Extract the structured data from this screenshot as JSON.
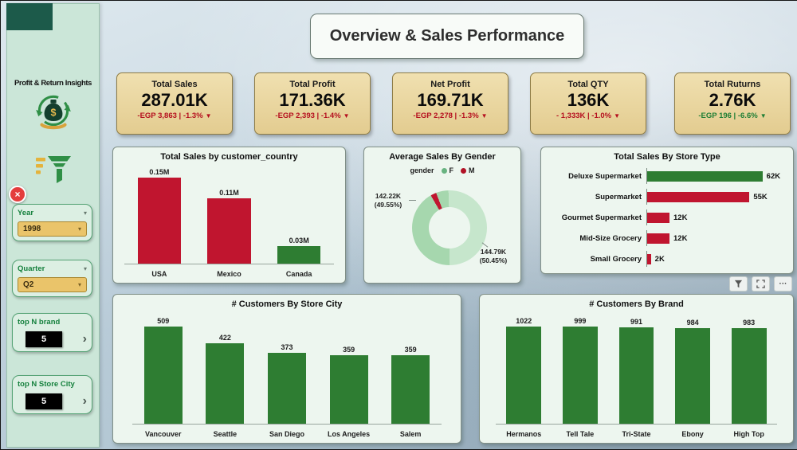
{
  "icons": {
    "chevron_down": "▾",
    "chevron_right": "›",
    "close": "×",
    "trend_down": "▼",
    "ellipsis": "···"
  },
  "colors": {
    "red": "#c0152f",
    "green": "#2e7d32",
    "kpi_background": "#e9d6a1",
    "card_background": "#edf6ef",
    "sidebar_background": "#cbe6d8",
    "slicer_gold": "#eac46a"
  },
  "header": {
    "title": "Overview & Sales Performance"
  },
  "sidebar": {
    "title": "Profit & Return Insights",
    "slicers": [
      {
        "label": "Year",
        "value": "1998"
      },
      {
        "label": "Quarter",
        "value": "Q2"
      },
      {
        "label": "top N brand",
        "value": "5"
      },
      {
        "label": "top N Store City",
        "value": "5"
      }
    ]
  },
  "kpis": [
    {
      "label": "Total Sales",
      "value": "287.01K",
      "delta": "-EGP 3,863 | -1.3%",
      "delta_color": "#b50f1e"
    },
    {
      "label": "Total Profit",
      "value": "171.36K",
      "delta": "-EGP 2,393 | -1.4%",
      "delta_color": "#b50f1e"
    },
    {
      "label": "Net Profit",
      "value": "169.71K",
      "delta": "-EGP 2,278 | -1.3%",
      "delta_color": "#b50f1e"
    },
    {
      "label": "Total QTY",
      "value": "136K",
      "delta": "- 1,333K | -1.0%",
      "delta_color": "#b50f1e"
    },
    {
      "label": "Total Ruturns",
      "value": "2.76K",
      "delta": "-EGP 196 | -6.6%",
      "delta_color": "#1e7e34"
    }
  ],
  "toolbar": {
    "icons": [
      "filter",
      "focus-mode",
      "more-options"
    ]
  },
  "chart_data": [
    {
      "type": "bar",
      "title": "Total Sales by customer_country",
      "categories": [
        "USA",
        "Mexico",
        "Canada"
      ],
      "values": [
        0.15,
        0.11,
        0.03
      ],
      "labels": [
        "0.15M",
        "0.11M",
        "0.03M"
      ],
      "colors": [
        "#c0152f",
        "#c0152f",
        "#2e7d32"
      ],
      "ylim": [
        0,
        0.16
      ],
      "unit": "M"
    },
    {
      "type": "pie",
      "donut": true,
      "title": "Average Sales By Gender",
      "legend_title": "gender",
      "accent": "#c0152f",
      "slices": [
        {
          "name": "F",
          "label": "142.22K (49.55%)",
          "value": 49.55,
          "color": "#a6d7ae",
          "legend_color": "#68b380"
        },
        {
          "name": "M",
          "label": "144.79K (50.45%)",
          "value": 50.45,
          "color": "#c6e6cc",
          "legend_color": "#b11226"
        }
      ]
    },
    {
      "type": "bar",
      "orientation": "horizontal",
      "title": "Total Sales By Store Type",
      "categories": [
        "Deluxe Supermarket",
        "Supermarket",
        "Gourmet Supermarket",
        "Mid-Size Grocery",
        "Small Grocery"
      ],
      "values": [
        62,
        55,
        12,
        12,
        2
      ],
      "labels": [
        "62K",
        "55K",
        "12K",
        "12K",
        "2K"
      ],
      "colors": [
        "#2e7d32",
        "#c0152f",
        "#c0152f",
        "#c0152f",
        "#c0152f"
      ],
      "xlim": [
        0,
        75
      ]
    },
    {
      "type": "bar",
      "title": "# Customers By Store City",
      "categories": [
        "Vancouver",
        "Seattle",
        "San Diego",
        "Los Angeles",
        "Salem"
      ],
      "values": [
        509,
        422,
        373,
        359,
        359
      ],
      "labels": [
        "509",
        "422",
        "373",
        "359",
        "359"
      ],
      "colors": [
        "#2e7d32",
        "#2e7d32",
        "#2e7d32",
        "#2e7d32",
        "#2e7d32"
      ],
      "ylim": [
        0,
        560
      ]
    },
    {
      "type": "bar",
      "title": "# Customers By Brand",
      "categories": [
        "Hermanos",
        "Tell Tale",
        "Tri-State",
        "Ebony",
        "High Top"
      ],
      "values": [
        1022,
        999,
        991,
        984,
        983
      ],
      "labels": [
        "1022",
        "999",
        "991",
        "984",
        "983"
      ],
      "colors": [
        "#2e7d32",
        "#2e7d32",
        "#2e7d32",
        "#2e7d32",
        "#2e7d32"
      ],
      "ylim": [
        0,
        1100
      ]
    }
  ]
}
